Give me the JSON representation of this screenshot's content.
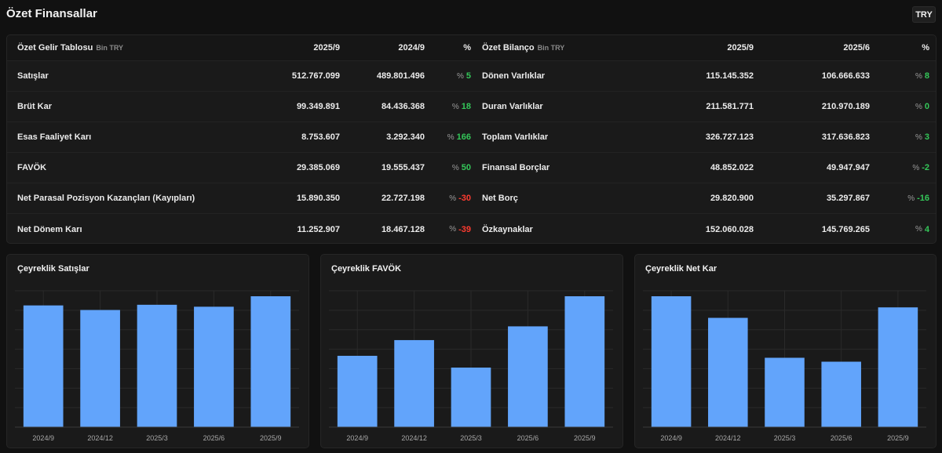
{
  "page": {
    "title": "Özet Finansallar",
    "currency_button": "TRY"
  },
  "income": {
    "title": "Özet Gelir Tablosu",
    "unit": "Bin TRY",
    "col1": "2025/9",
    "col2": "2024/9",
    "col3": "%",
    "pct_sign": "%",
    "rows": [
      {
        "label": "Satışlar",
        "v1": "512.767.099",
        "v2": "489.801.496",
        "pct": "5",
        "trend": "pos"
      },
      {
        "label": "Brüt Kar",
        "v1": "99.349.891",
        "v2": "84.436.368",
        "pct": "18",
        "trend": "pos"
      },
      {
        "label": "Esas Faaliyet Karı",
        "v1": "8.753.607",
        "v2": "3.292.340",
        "pct": "166",
        "trend": "pos"
      },
      {
        "label": "FAVÖK",
        "v1": "29.385.069",
        "v2": "19.555.437",
        "pct": "50",
        "trend": "pos"
      },
      {
        "label": "Net Parasal Pozisyon Kazançları (Kayıpları)",
        "v1": "15.890.350",
        "v2": "22.727.198",
        "pct": "-30",
        "trend": "neg"
      },
      {
        "label": "Net Dönem Karı",
        "v1": "11.252.907",
        "v2": "18.467.128",
        "pct": "-39",
        "trend": "neg"
      }
    ]
  },
  "balance": {
    "title": "Özet Bilanço",
    "unit": "Bin TRY",
    "col1": "2025/9",
    "col2": "2025/6",
    "col3": "%",
    "pct_sign": "%",
    "rows": [
      {
        "label": "Dönen Varlıklar",
        "v1": "115.145.352",
        "v2": "106.666.633",
        "pct": "8",
        "trend": "pos"
      },
      {
        "label": "Duran Varlıklar",
        "v1": "211.581.771",
        "v2": "210.970.189",
        "pct": "0",
        "trend": "pos"
      },
      {
        "label": "Toplam Varlıklar",
        "v1": "326.727.123",
        "v2": "317.636.823",
        "pct": "3",
        "trend": "pos"
      },
      {
        "label": "Finansal Borçlar",
        "v1": "48.852.022",
        "v2": "49.947.947",
        "pct": "-2",
        "trend": "pos"
      },
      {
        "label": "Net Borç",
        "v1": "29.820.900",
        "v2": "35.297.867",
        "pct": "-16",
        "trend": "pos"
      },
      {
        "label": "Özkaynaklar",
        "v1": "152.060.028",
        "v2": "145.769.265",
        "pct": "4",
        "trend": "pos"
      }
    ]
  },
  "colors": {
    "bar": "#62a4fb",
    "grid": "#2a2a2a",
    "positive": "#34c759",
    "negative": "#ff3b30"
  },
  "chart_data": [
    {
      "type": "bar",
      "title": "Çeyreklik Satışlar",
      "categories": [
        "2024/9",
        "2024/12",
        "2025/3",
        "2025/6",
        "2025/9"
      ],
      "values": [
        93,
        89.5,
        93.5,
        92,
        100
      ],
      "ylim": [
        0,
        100
      ],
      "xlabel": "",
      "ylabel": "",
      "grid": true
    },
    {
      "type": "bar",
      "title": "Çeyreklik FAVÖK",
      "categories": [
        "2024/9",
        "2024/12",
        "2025/3",
        "2025/6",
        "2025/9"
      ],
      "values": [
        54.5,
        66.5,
        45.5,
        77,
        100
      ],
      "ylim": [
        0,
        100
      ],
      "xlabel": "",
      "ylabel": "",
      "grid": true
    },
    {
      "type": "bar",
      "title": "Çeyreklik Net Kar",
      "categories": [
        "2024/9",
        "2024/12",
        "2025/3",
        "2025/6",
        "2025/9"
      ],
      "values": [
        100,
        83.5,
        53,
        50,
        91.5
      ],
      "ylim": [
        0,
        100
      ],
      "xlabel": "",
      "ylabel": "",
      "grid": true
    }
  ]
}
